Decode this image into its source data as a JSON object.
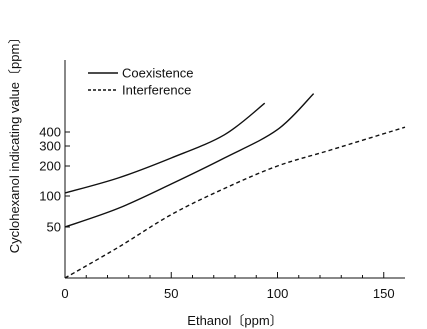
{
  "chart_data": {
    "type": "line",
    "xlabel": "Ethanol〔ppm〕",
    "ylabel": "Cyclohexanol indicating value〔ppm〕",
    "xlim": [
      0,
      160
    ],
    "ylim": [
      0,
      1000
    ],
    "y_scale": "nonlinear",
    "x_ticks": [
      0,
      50,
      100,
      150
    ],
    "x_tick_labels": [
      "0",
      "50",
      "100",
      "150"
    ],
    "y_ticks": [
      50,
      100,
      200,
      300,
      400
    ],
    "y_tick_labels": [
      "50",
      "100",
      "200",
      "300",
      "400"
    ],
    "grid": false,
    "legend_position": "top-left",
    "colors": {
      "line": "#111111",
      "text": "#111111",
      "background": "#ffffff"
    },
    "series": [
      {
        "name": "Coexistence",
        "style": "solid",
        "points": [
          {
            "x": 0,
            "y": 110
          },
          {
            "x": 25,
            "y": 160
          },
          {
            "x": 50,
            "y": 240
          },
          {
            "x": 75,
            "y": 380
          },
          {
            "x": 94,
            "y": 640
          }
        ]
      },
      {
        "name": "",
        "style": "solid",
        "points": [
          {
            "x": 0,
            "y": 50
          },
          {
            "x": 25,
            "y": 80
          },
          {
            "x": 50,
            "y": 140
          },
          {
            "x": 75,
            "y": 240
          },
          {
            "x": 100,
            "y": 420
          },
          {
            "x": 117,
            "y": 720
          }
        ]
      },
      {
        "name": "Interference",
        "style": "dashed",
        "points": [
          {
            "x": 0,
            "y": 0
          },
          {
            "x": 25,
            "y": 30
          },
          {
            "x": 50,
            "y": 70
          },
          {
            "x": 75,
            "y": 125
          },
          {
            "x": 100,
            "y": 200
          },
          {
            "x": 125,
            "y": 280
          },
          {
            "x": 160,
            "y": 440
          }
        ]
      }
    ]
  }
}
